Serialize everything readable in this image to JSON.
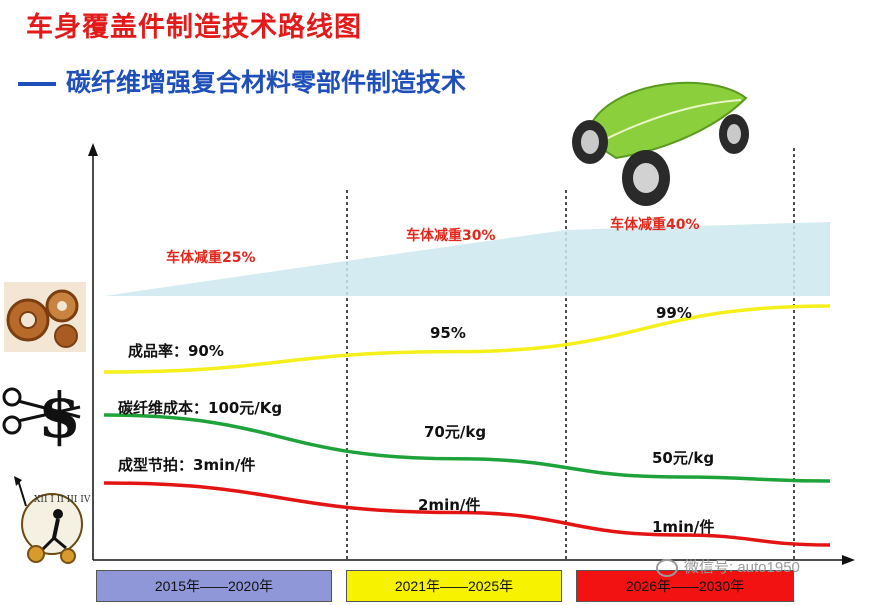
{
  "header": {
    "title": "车身覆盖件制造技术路线图",
    "subtitle": "碳纤维增强复合材料零部件制造技术"
  },
  "periods": [
    {
      "label": "2015年——2020年",
      "color": "#8f97d8"
    },
    {
      "label": "2021年——2025年",
      "color": "#f7f200"
    },
    {
      "label": "2026年——2030年",
      "color": "#f21212"
    }
  ],
  "watermark": "微信号: auto1950",
  "icons": [
    "gears-icon",
    "scissors-dollar-icon",
    "clock-runner-icon",
    "leaf-car-icon"
  ],
  "chart_data": {
    "type": "line",
    "x": [
      "2015年——2020年",
      "2021年——2025年",
      "2026年——2030年"
    ],
    "series": [
      {
        "metric": "车体减重",
        "labels": [
          "车体减重25%",
          "车体减重30%",
          "车体减重40%"
        ],
        "values": [
          25,
          30,
          40
        ],
        "color": "#cde7ef"
      },
      {
        "metric": "成品率",
        "labels": [
          "成品率：90%",
          "95%",
          "99%"
        ],
        "values": [
          90,
          95,
          99
        ],
        "color": "#f5ef1a"
      },
      {
        "metric": "碳纤维成本",
        "labels": [
          "碳纤维成本：100元/Kg",
          "70元/kg",
          "50元/kg"
        ],
        "values": [
          100,
          70,
          50
        ],
        "color": "#1ea33a"
      },
      {
        "metric": "成型节拍",
        "labels": [
          "成型节拍：3min/件",
          "2min/件",
          "1min/件"
        ],
        "values": [
          3,
          2,
          1
        ],
        "color": "#e41414"
      }
    ],
    "weight_label_color": "#e0281c",
    "grid": false
  }
}
